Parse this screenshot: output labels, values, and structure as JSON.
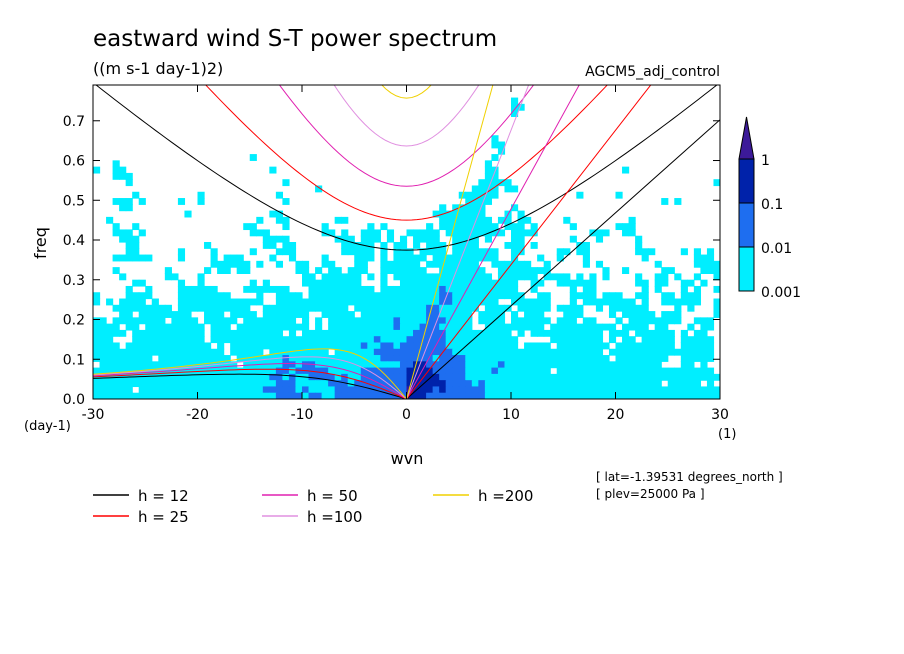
{
  "chart_data": {
    "type": "heatmap",
    "title": "eastward wind S-T power spectrum",
    "subtitle": "((m s-1 day-1)2)",
    "dataset_label": "AGCM5_adj_control",
    "xlabel": "wvn",
    "ylabel": "freq",
    "x_unit": "(1)",
    "y_unit": "(day-1)",
    "xlim": [
      -30,
      30
    ],
    "ylim": [
      0,
      0.79
    ],
    "x_ticks": [
      -30,
      -20,
      -10,
      0,
      10,
      20,
      30
    ],
    "x_tick_labels": [
      "-30",
      "-20",
      "-10",
      "0",
      "10",
      "20",
      "30"
    ],
    "y_ticks": [
      0,
      0.1,
      0.2,
      0.3,
      0.4,
      0.5,
      0.6,
      0.7
    ],
    "y_tick_labels": [
      "0.0",
      "0.1",
      "0.2",
      "0.3",
      "0.4",
      "0.5",
      "0.6",
      "0.7"
    ],
    "colorbar": {
      "levels": [
        0.001,
        0.01,
        0.1,
        1
      ],
      "labels": [
        "0.001",
        "0.01",
        "0.1",
        "1"
      ],
      "colors": [
        "#ffffff",
        "#00eeff",
        "#1e6ef0",
        "#0022aa",
        "#3c1a99"
      ]
    },
    "dispersion_curves": [
      {
        "label": "h = 12",
        "h": 12,
        "color": "#000000"
      },
      {
        "label": "h = 25",
        "h": 25,
        "color": "#ff0000"
      },
      {
        "label": "h = 50",
        "h": 50,
        "color": "#e020b0"
      },
      {
        "label": "h =100",
        "h": 100,
        "color": "#e090e0"
      },
      {
        "label": "h =200",
        "h": 200,
        "color": "#f0d000"
      }
    ],
    "annotations": [
      "[ lat=-1.39531 degrees_north ]",
      "[ plev=25000 Pa ]"
    ]
  }
}
